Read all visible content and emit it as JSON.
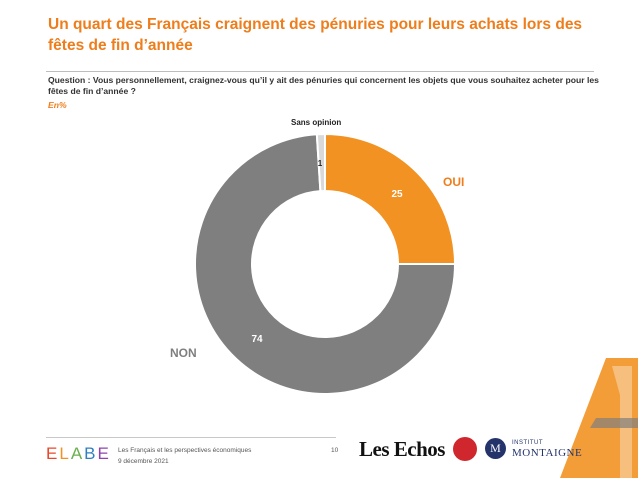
{
  "title": "Un quart des Français craignent des pénuries pour leurs achats lors des fêtes de fin d’année",
  "question": "Question : Vous personnellement, craignez-vous qu’il y ait des pénuries qui concernent les objets que vous souhaitez acheter pour les fêtes de fin d’année ?",
  "unit_note": "En%",
  "chart_data": {
    "type": "pie",
    "variant": "donut",
    "categories": [
      "OUI",
      "NON",
      "Sans opinion"
    ],
    "values": [
      25,
      74,
      1
    ],
    "colors": [
      "#f29222",
      "#7f7f7f",
      "#d9d9d9"
    ],
    "value_labels": [
      "25",
      "74",
      "1"
    ]
  },
  "footer": {
    "brand": "ELABE",
    "study": "Les Français et les perspectives économiques",
    "date": "9 décembre 2021",
    "page": "10",
    "partner_echos": "Les Echos",
    "partner_montaigne_top": "INSTITUT",
    "partner_montaigne_bottom": "MONTAIGNE",
    "partner_m_letter": "M"
  }
}
